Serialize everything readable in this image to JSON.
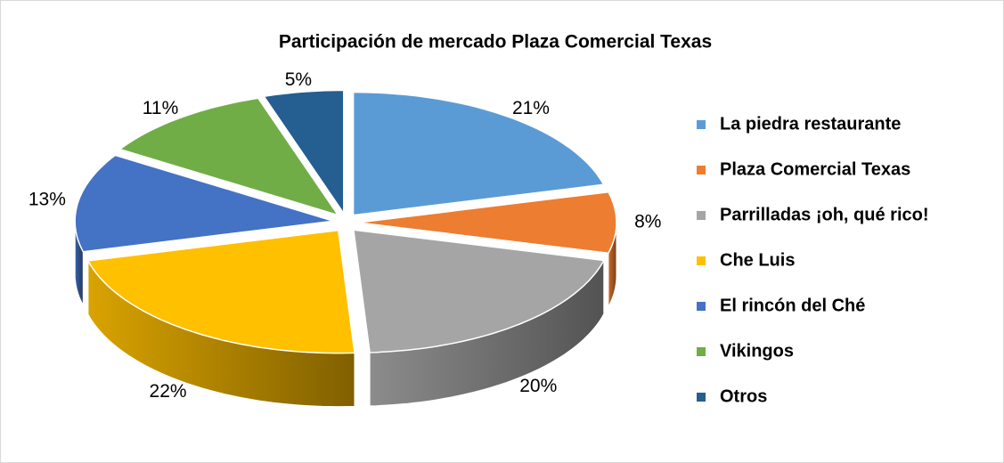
{
  "chart_data": {
    "type": "pie3d",
    "title": "Participación de mercado Plaza Comercial Texas",
    "categories": [
      "La piedra restaurante",
      "Plaza Comercial Texas",
      "Parrilladas ¡oh, qué rico!",
      "Che Luis",
      "El rincón del Ché",
      "Vikingos",
      "Otros"
    ],
    "values": [
      21,
      8,
      20,
      22,
      13,
      11,
      5
    ],
    "value_labels": [
      "21%",
      "8%",
      "20%",
      "22%",
      "13%",
      "11%",
      "5%"
    ],
    "colors": [
      "#5b9bd5",
      "#ed7d31",
      "#a5a5a5",
      "#ffc000",
      "#4472c4",
      "#70ad47",
      "#255e91"
    ],
    "legend": "right"
  }
}
